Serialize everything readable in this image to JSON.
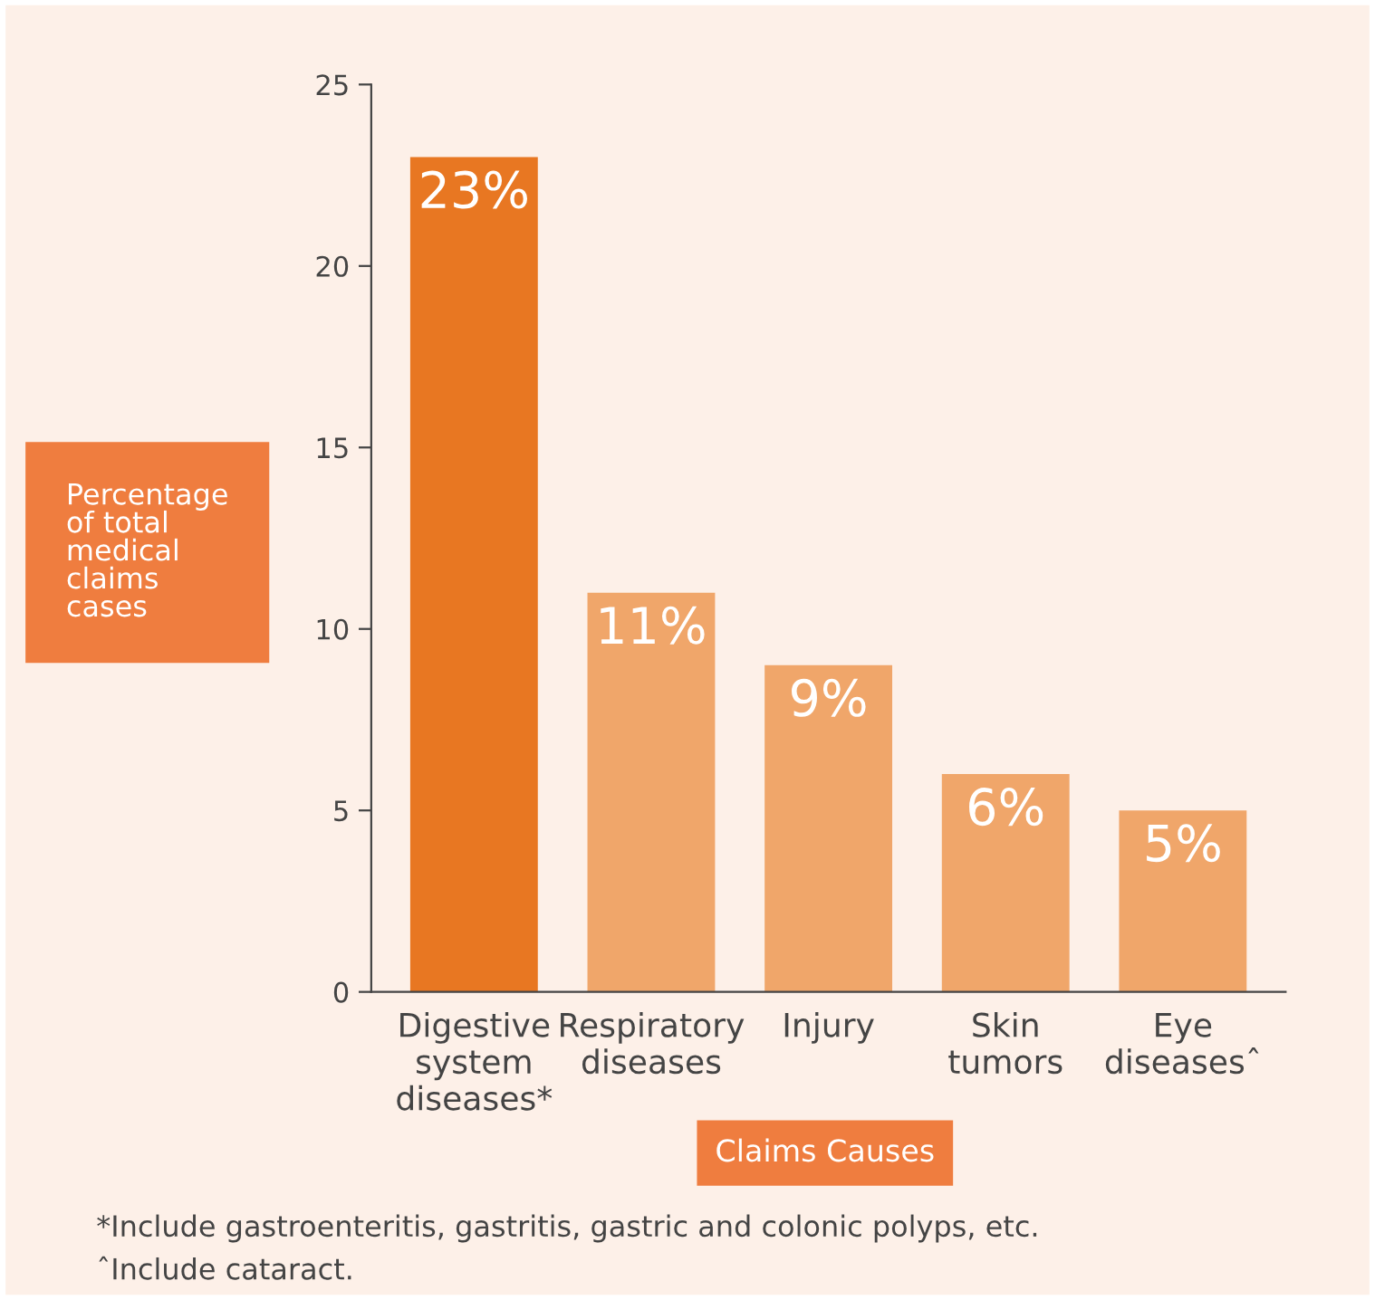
{
  "chart_data": {
    "type": "bar",
    "categories": [
      "Digestive\nsystem\ndiseases*",
      "Respiratory\ndiseases",
      "Injury",
      "Skin\ntumors",
      "Eye\ndiseasesˆ"
    ],
    "values": [
      23,
      11,
      9,
      6,
      5
    ],
    "colors": [
      "#e87722",
      "#f0a66a",
      "#f0a66a",
      "#f0a66a",
      "#f0a66a"
    ],
    "value_labels": [
      "23%",
      "11%",
      "9%",
      "6%",
      "5%"
    ],
    "ylabel": "Percentage\nof total\nmedical\nclaims\ncases",
    "xlabel": "Claims Causes",
    "ylim": [
      0,
      25
    ],
    "yticks": [
      0,
      5,
      10,
      15,
      20,
      25
    ],
    "grid": false,
    "legend": false,
    "annotations": [
      "*Include gastroenteritis, gastritis, gastric and colonic polyps, etc.",
      "ˆInclude cataract."
    ]
  }
}
